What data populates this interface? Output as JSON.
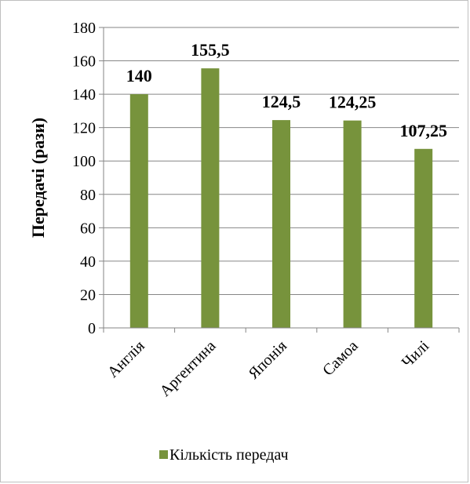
{
  "chart_data": {
    "type": "bar",
    "categories": [
      "Англія",
      "Аргентина",
      "Японія",
      "Самоа",
      "Чилі"
    ],
    "series": [
      {
        "name": "Кількість передач",
        "values": [
          140,
          155.5,
          124.5,
          124.25,
          107.25
        ]
      }
    ],
    "value_labels": [
      "140",
      "155,5",
      "124,5",
      "124,25",
      "107,25"
    ],
    "y_ticks": [
      "0",
      "20",
      "40",
      "60",
      "80",
      "100",
      "120",
      "140",
      "160",
      "180"
    ],
    "ylabel": "Передачі (рази)",
    "xlabel": "",
    "title": "",
    "ylim": [
      0,
      180
    ],
    "grid": true,
    "legend_position": "bottom",
    "colors": {
      "bar": "#77933c",
      "grid": "#868686",
      "axis": "#868686",
      "frame": "#bfbfbf"
    }
  }
}
